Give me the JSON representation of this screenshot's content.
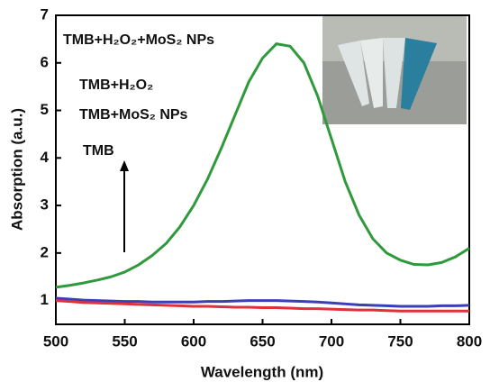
{
  "chart_data": {
    "type": "line",
    "x_label": "Wavelength (nm)",
    "y_label": "Absorption (a.u.)",
    "x": [
      500,
      510,
      520,
      530,
      540,
      550,
      560,
      570,
      580,
      590,
      600,
      610,
      620,
      630,
      640,
      650,
      660,
      670,
      680,
      690,
      700,
      710,
      720,
      730,
      740,
      750,
      760,
      770,
      780,
      790,
      800
    ],
    "series": [
      {
        "color": "#2e9a3c",
        "values": [
          1.28,
          1.32,
          1.37,
          1.43,
          1.5,
          1.6,
          1.75,
          1.95,
          2.2,
          2.55,
          3.0,
          3.55,
          4.2,
          4.9,
          5.6,
          6.1,
          6.4,
          6.35,
          6.0,
          5.3,
          4.4,
          3.5,
          2.8,
          2.3,
          2.0,
          1.85,
          1.76,
          1.75,
          1.8,
          1.92,
          2.1
        ]
      },
      {
        "color": "#3a3fb8",
        "values": [
          1.05,
          1.03,
          1.01,
          1.0,
          0.99,
          0.98,
          0.98,
          0.97,
          0.97,
          0.97,
          0.97,
          0.98,
          0.98,
          0.99,
          1.0,
          1.0,
          1.0,
          0.99,
          0.98,
          0.97,
          0.95,
          0.93,
          0.91,
          0.9,
          0.89,
          0.88,
          0.88,
          0.88,
          0.89,
          0.89,
          0.9
        ]
      },
      {
        "color": "#e0303a",
        "values": [
          1.0,
          0.98,
          0.96,
          0.95,
          0.94,
          0.93,
          0.92,
          0.91,
          0.9,
          0.89,
          0.88,
          0.88,
          0.87,
          0.86,
          0.86,
          0.85,
          0.85,
          0.84,
          0.83,
          0.83,
          0.82,
          0.81,
          0.8,
          0.8,
          0.79,
          0.78,
          0.78,
          0.78,
          0.78,
          0.78,
          0.78
        ]
      }
    ],
    "annotations": [
      "TMB+H₂O₂+MoS₂ NPs",
      "TMB+H₂O₂",
      "TMB+MoS₂ NPs",
      "TMB"
    ],
    "xlim": [
      500,
      800
    ],
    "ylim": [
      0.5,
      7
    ],
    "xticks": [
      500,
      550,
      600,
      650,
      700,
      750,
      800
    ],
    "yticks": [
      1,
      2,
      3,
      4,
      5,
      6,
      7
    ]
  }
}
